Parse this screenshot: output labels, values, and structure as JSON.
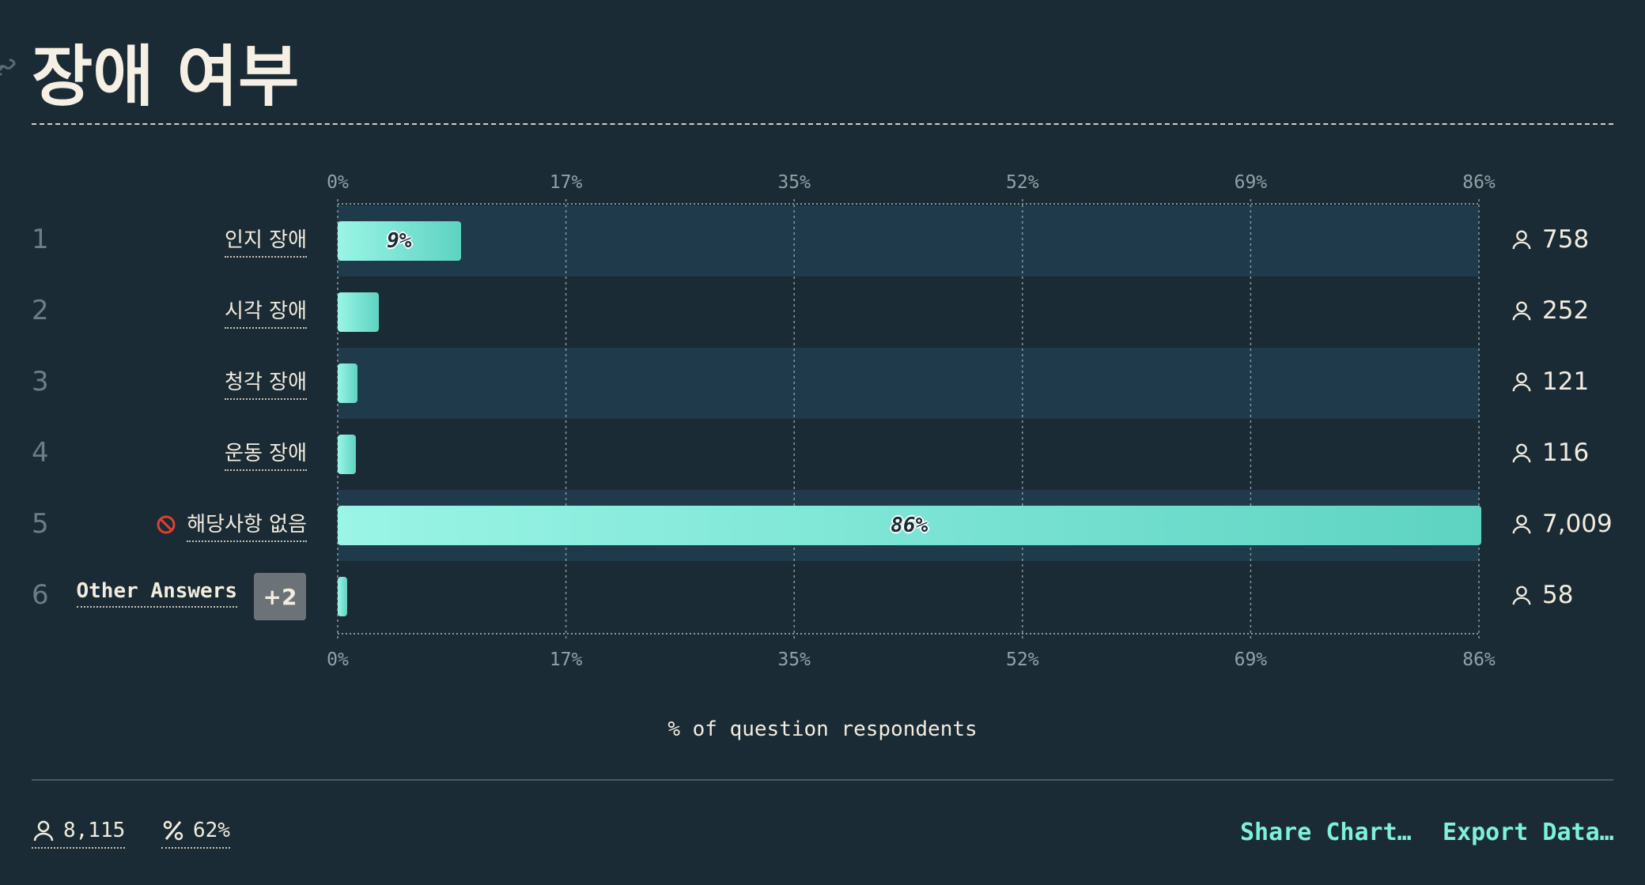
{
  "title": "장애 여부",
  "colors": {
    "background": "#1a2b35",
    "band": "#1f3a4a",
    "bar_start": "#9af5e6",
    "bar_end": "#5ed3c2",
    "accent": "#7ff0dc"
  },
  "chart_data": {
    "type": "bar",
    "orientation": "horizontal",
    "xlabel": "% of question respondents",
    "ticks": [
      "0%",
      "17%",
      "35%",
      "52%",
      "69%",
      "86%"
    ],
    "tick_values": [
      0,
      17.25,
      34.5,
      51.75,
      69,
      86.25
    ],
    "xlim": [
      0,
      86.25
    ],
    "grid": true,
    "rows": [
      {
        "rank": "1",
        "label": "인지 장애",
        "percent": 9.3,
        "bar_label": "9%",
        "count": "758"
      },
      {
        "rank": "2",
        "label": "시각 장애",
        "percent": 3.1,
        "bar_label": "",
        "count": "252"
      },
      {
        "rank": "3",
        "label": "청각 장애",
        "percent": 1.5,
        "bar_label": "",
        "count": "121"
      },
      {
        "rank": "4",
        "label": "운동 장애",
        "percent": 1.4,
        "bar_label": "",
        "count": "116"
      },
      {
        "rank": "5",
        "label": "해당사항 없음",
        "percent": 86.4,
        "bar_label": "86%",
        "count": "7,009",
        "icon": "no-entry-icon"
      },
      {
        "rank": "6",
        "label": "Other Answers",
        "percent": 0.7,
        "bar_label": "",
        "count": "58",
        "badge": "+2"
      }
    ]
  },
  "footer": {
    "respondents": "8,115",
    "percent": "62%",
    "share_label": "Share Chart…",
    "export_label": "Export Data…"
  }
}
